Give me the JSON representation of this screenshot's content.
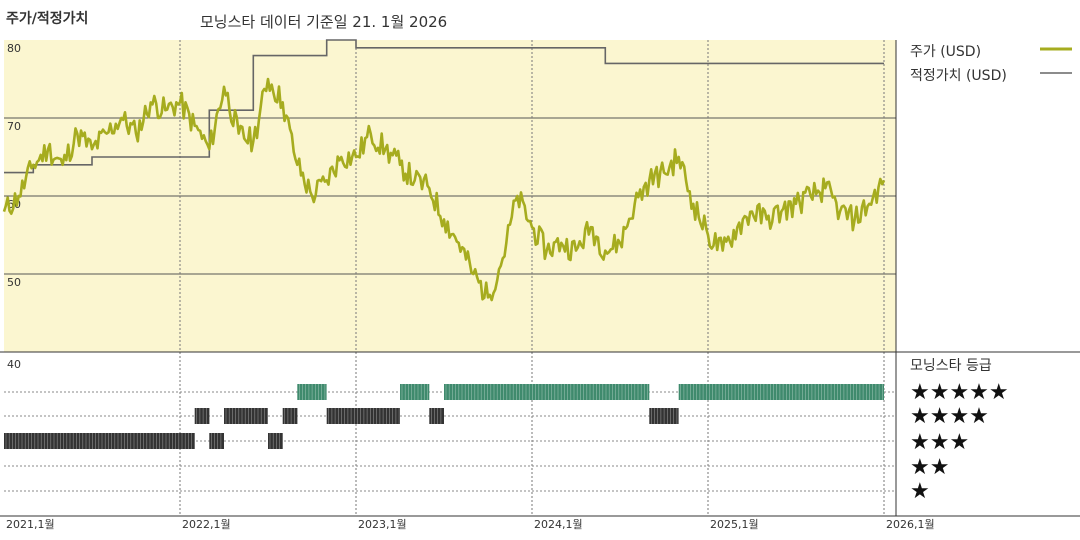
{
  "header": {
    "title": "주가/적정가치",
    "subtitle": "모닝스타 데이터 기준일 21. 1월 2026"
  },
  "colors": {
    "price": "#a6ac1f",
    "fair_value": "#666666",
    "band": "#fbf6d0",
    "rating_5": "#3f8a6d",
    "rating_other": "#333333",
    "grid": "#555555"
  },
  "chart_data": [
    {
      "type": "line",
      "title": "주가/적정가치",
      "subtitle": "모닝스타 데이터 기준일 21. 1월 2026",
      "x_ticks": [
        "2021,1월",
        "2022,1월",
        "2023,1월",
        "2024,1월",
        "2025,1월",
        "2026,1월"
      ],
      "x_range": [
        "2021-01",
        "2026-01"
      ],
      "y_ticks": [
        80,
        70,
        60,
        50
      ],
      "ylim": [
        40,
        80
      ],
      "legend": {
        "position": "right",
        "entries": [
          "주가 (USD)",
          "적정가치 (USD)"
        ]
      },
      "series": [
        {
          "name": "주가 (USD)",
          "points": [
            [
              "2021-01",
              58
            ],
            [
              "2021-02",
              60
            ],
            [
              "2021-03",
              64
            ],
            [
              "2021-04",
              66
            ],
            [
              "2021-05",
              64
            ],
            [
              "2021-06",
              68
            ],
            [
              "2021-07",
              66
            ],
            [
              "2021-08",
              68
            ],
            [
              "2021-09",
              70
            ],
            [
              "2021-10",
              68
            ],
            [
              "2021-11",
              72
            ],
            [
              "2021-12",
              71
            ],
            [
              "2022-01",
              72
            ],
            [
              "2022-02",
              69
            ],
            [
              "2022-03",
              66
            ],
            [
              "2022-04",
              74
            ],
            [
              "2022-05",
              68
            ],
            [
              "2022-06",
              67
            ],
            [
              "2022-07",
              75
            ],
            [
              "2022-08",
              72
            ],
            [
              "2022-09",
              64
            ],
            [
              "2022-10",
              60
            ],
            [
              "2022-11",
              62
            ],
            [
              "2022-12",
              65
            ],
            [
              "2023-01",
              65
            ],
            [
              "2023-02",
              68
            ],
            [
              "2023-03",
              66
            ],
            [
              "2023-04",
              64
            ],
            [
              "2023-05",
              62
            ],
            [
              "2023-06",
              61
            ],
            [
              "2023-07",
              57
            ],
            [
              "2023-08",
              54
            ],
            [
              "2023-09",
              50
            ],
            [
              "2023-10",
              47
            ],
            [
              "2023-11",
              52
            ],
            [
              "2023-12",
              60
            ],
            [
              "2024-01",
              56
            ],
            [
              "2024-02",
              53
            ],
            [
              "2024-03",
              54
            ],
            [
              "2024-04",
              53
            ],
            [
              "2024-05",
              56
            ],
            [
              "2024-06",
              53
            ],
            [
              "2024-07",
              54
            ],
            [
              "2024-08",
              59
            ],
            [
              "2024-09",
              62
            ],
            [
              "2024-10",
              63
            ],
            [
              "2024-11",
              65
            ],
            [
              "2024-12",
              59
            ],
            [
              "2025-01",
              55
            ],
            [
              "2025-02",
              53
            ],
            [
              "2025-03",
              56
            ],
            [
              "2025-04",
              58
            ],
            [
              "2025-05",
              57
            ],
            [
              "2025-06",
              58
            ],
            [
              "2025-07",
              59
            ],
            [
              "2025-08",
              60
            ],
            [
              "2025-09",
              61
            ],
            [
              "2025-10",
              58
            ],
            [
              "2025-11",
              57
            ],
            [
              "2025-12",
              59
            ],
            [
              "2026-01",
              62
            ]
          ]
        },
        {
          "name": "적정가치 (USD)",
          "steps": [
            [
              "2021-01",
              63
            ],
            [
              "2021-03",
              64
            ],
            [
              "2021-07",
              65
            ],
            [
              "2022-03",
              71
            ],
            [
              "2022-06",
              78
            ],
            [
              "2022-11",
              80
            ],
            [
              "2023-01",
              79
            ],
            [
              "2024-06",
              77
            ],
            [
              "2026-01",
              77
            ]
          ]
        }
      ]
    },
    {
      "type": "timeline",
      "title": "모닝스타 등급",
      "rows": [
        "★★★★★",
        "★★★★",
        "★★★",
        "★★",
        "★"
      ],
      "segments": [
        {
          "from": "2021-01",
          "to": "2022-02",
          "rating": 3
        },
        {
          "from": "2022-02",
          "to": "2022-03",
          "rating": 4
        },
        {
          "from": "2022-03",
          "to": "2022-04",
          "rating": 3
        },
        {
          "from": "2022-04",
          "to": "2022-07",
          "rating": 4
        },
        {
          "from": "2022-07",
          "to": "2022-08",
          "rating": 3
        },
        {
          "from": "2022-08",
          "to": "2022-09",
          "rating": 4
        },
        {
          "from": "2022-09",
          "to": "2022-11",
          "rating": 5
        },
        {
          "from": "2022-11",
          "to": "2023-04",
          "rating": 4
        },
        {
          "from": "2023-04",
          "to": "2023-06",
          "rating": 5
        },
        {
          "from": "2023-06",
          "to": "2023-07",
          "rating": 4
        },
        {
          "from": "2023-07",
          "to": "2024-09",
          "rating": 5
        },
        {
          "from": "2024-09",
          "to": "2024-11",
          "rating": 4
        },
        {
          "from": "2024-11",
          "to": "2026-01",
          "rating": 5
        }
      ]
    }
  ]
}
